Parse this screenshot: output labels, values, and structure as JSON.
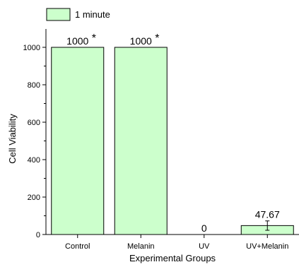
{
  "chart_data": {
    "type": "bar",
    "categories": [
      "Control",
      "Melanin",
      "UV",
      "UV+Melanin"
    ],
    "series": [
      {
        "name": "1 minute",
        "values": [
          1000,
          1000,
          0,
          47.67
        ],
        "data_labels": [
          "1000",
          "1000",
          "0",
          "47.67"
        ],
        "significance": [
          "*",
          "*",
          "",
          ""
        ],
        "error": [
          0,
          0,
          0,
          25
        ]
      }
    ],
    "xlabel": "Experimental Groups",
    "ylabel": "Cell Viability",
    "ylim": [
      0,
      1100
    ],
    "yticks": [
      0,
      200,
      400,
      600,
      800,
      1000
    ],
    "ytick_labels": [
      "0",
      "200",
      "400",
      "600",
      "800",
      "1000"
    ],
    "grid": false,
    "legend_position": "top-left",
    "colors": {
      "bar_fill": "#ccffcc",
      "bar_stroke": "#000000",
      "axis": "#000000"
    }
  }
}
